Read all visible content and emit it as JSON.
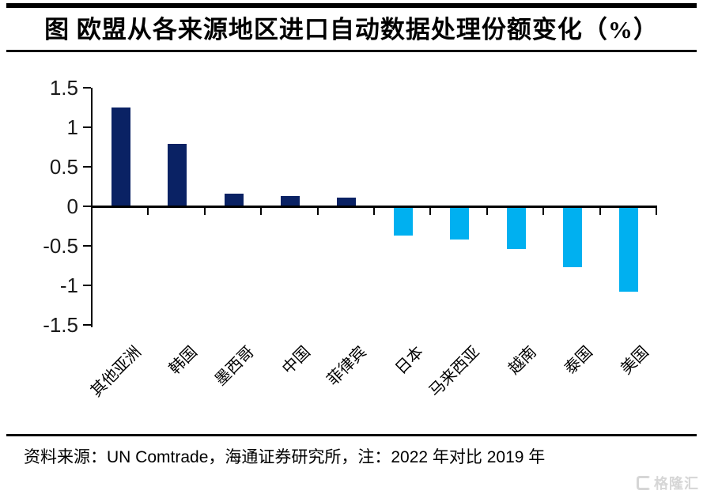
{
  "title": "图 欧盟从各来源地区进口自动数据处理份额变化（%）",
  "footer": {
    "source_note": "资料来源：UN Comtrade，海通证券研究所，注：2022 年对比 2019 年"
  },
  "watermark": {
    "label": "格隆汇",
    "logo_icon": "gelonghui-logo-icon"
  },
  "colors": {
    "positive_bar": "#0a2264",
    "negative_bar": "#00b0f0",
    "axis": "#000000",
    "rule": "#000000",
    "watermark": "#d6d6d6"
  },
  "chart_data": {
    "type": "bar",
    "title": "图 欧盟从各来源地区进口自动数据处理份额变化（%）",
    "categories": [
      "其他亚洲",
      "韩国",
      "墨西哥",
      "中国",
      "菲律宾",
      "日本",
      "马来西亚",
      "越南",
      "泰国",
      "美国"
    ],
    "values": [
      1.24,
      0.78,
      0.15,
      0.12,
      0.1,
      -0.35,
      -0.4,
      -0.52,
      -0.75,
      -1.06
    ],
    "xlabel": "",
    "ylabel": "",
    "ylim": [
      -1.5,
      1.5
    ],
    "ytick_labels": [
      "1.5",
      "1",
      "0.5",
      "0",
      "-0.5",
      "-1",
      "-1.5"
    ],
    "ytick_values": [
      1.5,
      1.0,
      0.5,
      0.0,
      -0.5,
      -1.0,
      -1.5
    ],
    "grid": false,
    "legend": false,
    "bar_color_rule": "positive bars navy, negative bars cyan"
  }
}
